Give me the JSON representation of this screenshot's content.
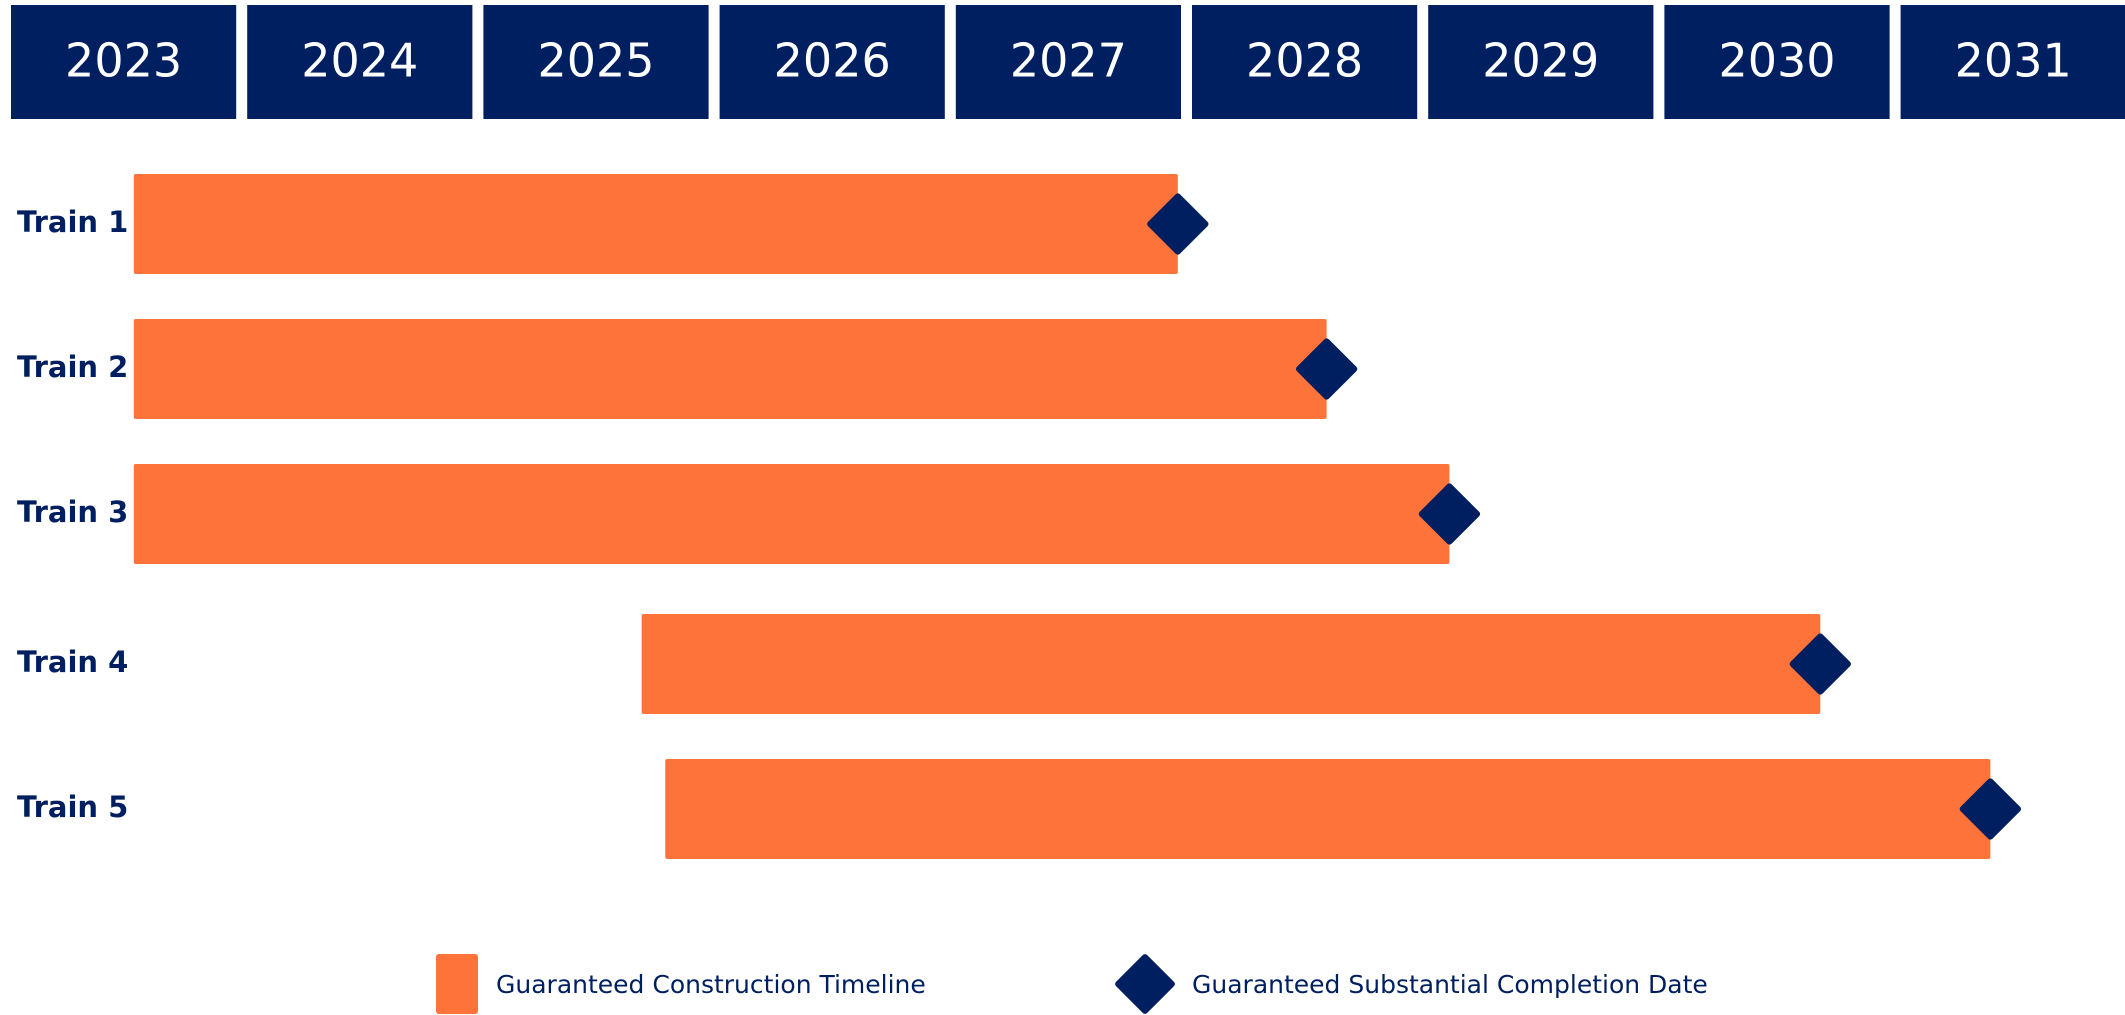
{
  "chart_data": {
    "type": "gantt",
    "categories": [
      "Train 1",
      "Train 2",
      "Train 3",
      "Train 4",
      "Train 5"
    ],
    "xlim": [
      2023,
      2032
    ],
    "xticks": [
      2023,
      2024,
      2025,
      2026,
      2027,
      2028,
      2029,
      2030,
      2031
    ],
    "header_color": "#001f60",
    "series": [
      {
        "name": "Guaranteed Construction Timeline",
        "color": "#fe7339",
        "start": [
          2023.52,
          2023.52,
          2023.52,
          2025.67,
          2025.77
        ],
        "end": [
          2027.94,
          2028.57,
          2029.09,
          2030.66,
          2031.38
        ]
      },
      {
        "name": "Guaranteed Substantial Completion Date",
        "color": "#001f60",
        "values": [
          2027.94,
          2028.57,
          2029.09,
          2030.66,
          2031.38
        ]
      }
    ]
  }
}
